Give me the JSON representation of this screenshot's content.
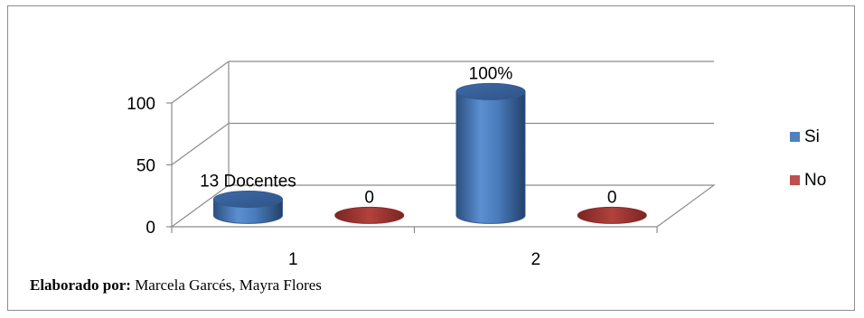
{
  "chart_data": {
    "type": "bar",
    "style": "3d-cylinder",
    "categories": [
      "1",
      "2"
    ],
    "series": [
      {
        "name": "Si",
        "color": "#4f81bd",
        "values": [
          13,
          100
        ],
        "data_labels": [
          "13 Docentes",
          "100%"
        ]
      },
      {
        "name": "No",
        "color": "#c0504d",
        "values": [
          0,
          0
        ],
        "data_labels": [
          "0",
          "0"
        ]
      }
    ],
    "yticks": [
      0,
      50,
      100
    ],
    "ylim": [
      0,
      100
    ],
    "grid": true,
    "legend_position": "right"
  },
  "footer": {
    "label": "Elaborado por:",
    "text": " Marcela Garcés, Mayra Flores"
  }
}
